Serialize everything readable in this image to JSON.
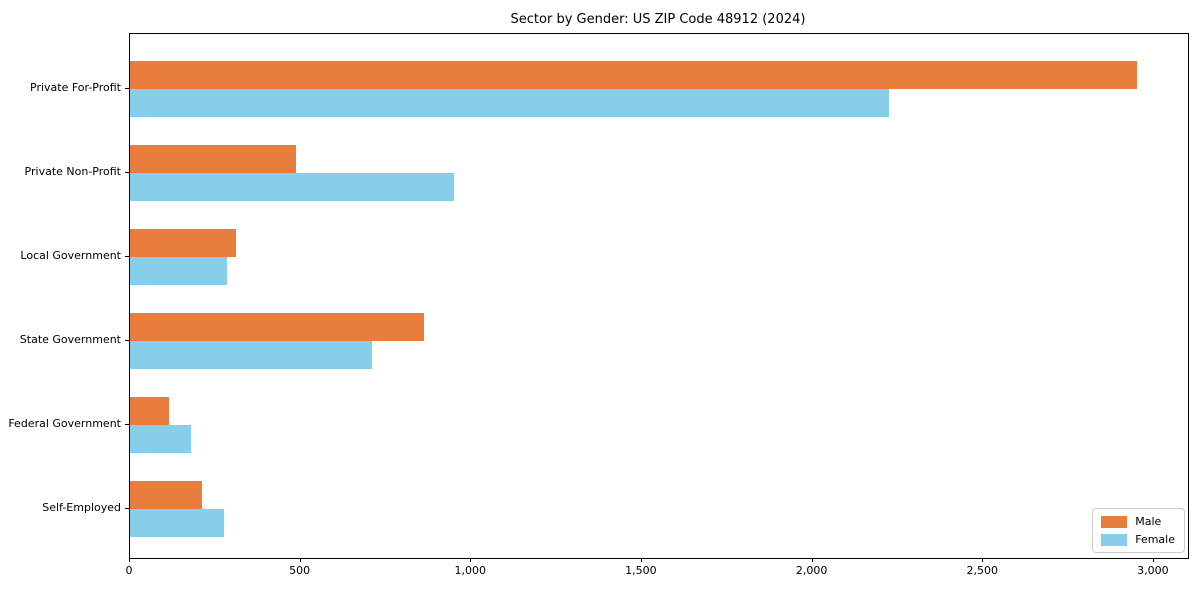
{
  "title": "Sector by Gender: US ZIP Code 48912 (2024)",
  "chart_data": {
    "type": "bar",
    "orientation": "horizontal",
    "title": "Sector by Gender: US ZIP Code 48912 (2024)",
    "categories": [
      "Private For-Profit",
      "Private Non-Profit",
      "Local Government",
      "State Government",
      "Federal Government",
      "Self-Employed"
    ],
    "series": [
      {
        "name": "Male",
        "color": "#e87d3e",
        "values": [
          2950,
          485,
          310,
          860,
          115,
          210
        ]
      },
      {
        "name": "Female",
        "color": "#87ceeb",
        "values": [
          2225,
          950,
          285,
          710,
          180,
          275
        ]
      }
    ],
    "xlim": [
      0,
      3100
    ],
    "xticks": {
      "values": [
        0,
        500,
        1000,
        1500,
        2000,
        2500,
        3000
      ],
      "labels": [
        "0",
        "500",
        "1,000",
        "1,500",
        "2,000",
        "2,500",
        "3,000"
      ]
    },
    "legend": {
      "position": "lower-right",
      "entries": [
        "Male",
        "Female"
      ]
    },
    "grid": false,
    "background": "#ffffff",
    "axis_color": "#000000"
  }
}
